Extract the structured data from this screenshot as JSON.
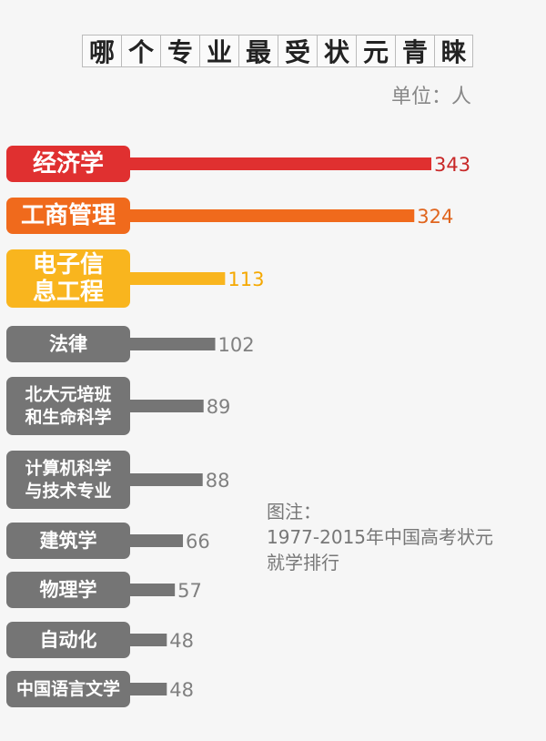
{
  "header": {
    "title": "哪个专业最受状元青睐",
    "unit": "单位：人"
  },
  "note": {
    "line1": "图注：",
    "line2": "1977-2015年中国高考状元",
    "line3": "就学排行"
  },
  "chart_data": {
    "type": "bar",
    "orientation": "horizontal",
    "title": "哪个专业最受状元青睐",
    "unit": "单位：人",
    "categories": [
      [
        "经济学"
      ],
      [
        "工商管理"
      ],
      [
        "电子信",
        "息工程"
      ],
      [
        "法律"
      ],
      [
        "北大元培班",
        "和生命科学"
      ],
      [
        "计算机科学",
        "与技术专业"
      ],
      [
        "建筑学"
      ],
      [
        "物理学"
      ],
      [
        "自动化"
      ],
      [
        "中国语言文学"
      ]
    ],
    "values": [
      343,
      324,
      113,
      102,
      89,
      88,
      66,
      57,
      48,
      48
    ],
    "colors": [
      "#e03030",
      "#f06a1c",
      "#f9b51e",
      "#757575",
      "#757575",
      "#757575",
      "#757575",
      "#757575",
      "#757575",
      "#757575"
    ],
    "value_colors": [
      "#c82828",
      "#e0651e",
      "#f5a800",
      "#808080",
      "#808080",
      "#808080",
      "#808080",
      "#808080",
      "#808080",
      "#808080"
    ],
    "grid": false,
    "legend": "none"
  }
}
